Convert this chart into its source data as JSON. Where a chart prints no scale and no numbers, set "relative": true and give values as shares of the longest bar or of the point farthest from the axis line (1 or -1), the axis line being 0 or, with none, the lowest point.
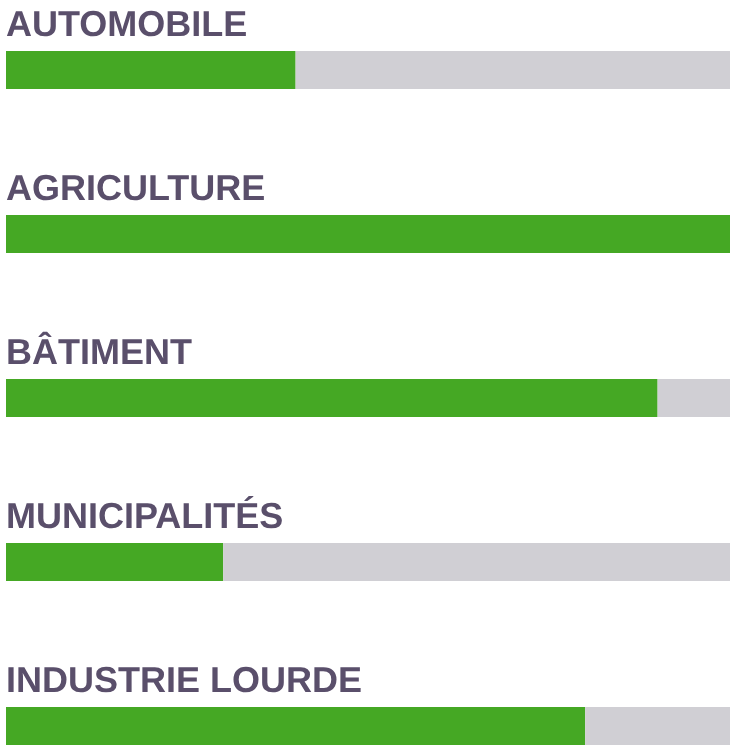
{
  "chart_data": {
    "type": "bar",
    "orientation": "horizontal",
    "stacked": true,
    "relative": true,
    "categories": [
      "AUTOMOBILE",
      "AGRICULTURE",
      "BÂTIMENT",
      "MUNICIPALITÉS",
      "INDUSTRIE LOURDE"
    ],
    "series": [
      {
        "color": "#45a824",
        "values": [
          0.4,
          1,
          0.9,
          0.3,
          0.8
        ]
      },
      {
        "color": "#d0cfd4",
        "values": [
          0.6,
          0,
          0.1,
          0.7,
          0.2
        ]
      }
    ],
    "legend": false
  }
}
